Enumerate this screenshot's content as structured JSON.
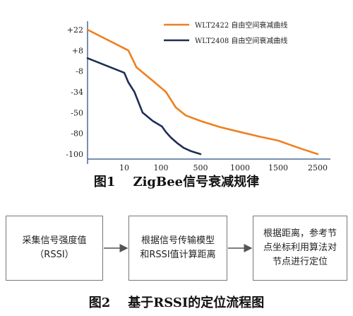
{
  "figure1": {
    "caption": "图1    ZigBee信号衰减规律",
    "chart_data": {
      "type": "line",
      "title": "",
      "xlabel": "",
      "ylabel": "",
      "x_tick_labels": [
        "10",
        "100",
        "500",
        "1000",
        "1500",
        "2500"
      ],
      "y_tick_labels": [
        "+22",
        "+8",
        "-8",
        "-34",
        "-50",
        "-80",
        "-100"
      ],
      "grid": false,
      "legend_position": "top-right",
      "series": [
        {
          "name": "WLT2422 自由空间衰减曲线",
          "color": "#ee8020",
          "shape": "logarithmic decay from about +22 dBm near distance 0 to about -100 dBm at 2500",
          "points": [
            [
              0,
              22
            ],
            [
              20,
              8
            ],
            [
              40,
              -5
            ],
            [
              80,
              -20
            ],
            [
              150,
              -34
            ],
            [
              250,
              -46
            ],
            [
              350,
              -54
            ],
            [
              500,
              -62
            ],
            [
              750,
              -71
            ],
            [
              1000,
              -78
            ],
            [
              1250,
              -83
            ],
            [
              1500,
              -87
            ],
            [
              1800,
              -91
            ],
            [
              2100,
              -95
            ],
            [
              2500,
              -100
            ]
          ]
        },
        {
          "name": "WLT2408 自由空间衰减曲线",
          "color": "#1e2f55",
          "shape": "steeper decay from about +2 dBm near distance 0 to about -100 dBm at 500",
          "points": [
            [
              0,
              2
            ],
            [
              10,
              -10
            ],
            [
              20,
              -22
            ],
            [
              35,
              -34
            ],
            [
              55,
              -50
            ],
            [
              80,
              -62
            ],
            [
              110,
              -70
            ],
            [
              150,
              -78
            ],
            [
              200,
              -84
            ],
            [
              260,
              -89
            ],
            [
              330,
              -94
            ],
            [
              400,
              -97
            ],
            [
              500,
              -100
            ]
          ]
        }
      ]
    }
  },
  "figure2": {
    "caption": "图2    基于RSSI的定位流程图",
    "boxes": [
      {
        "lines": [
          "采集信号强度值",
          "（RSSI）"
        ]
      },
      {
        "lines": [
          "根据信号传输模型",
          "和RSSI值计算距离"
        ]
      },
      {
        "lines": [
          "根据距离，参考节",
          "点坐标利用算法对",
          "节点进行定位"
        ]
      }
    ]
  },
  "colors": {
    "orange_series": "#ee8020",
    "navy_series": "#1e2f55",
    "axis": "#4a6a99",
    "box_border": "#777777"
  }
}
